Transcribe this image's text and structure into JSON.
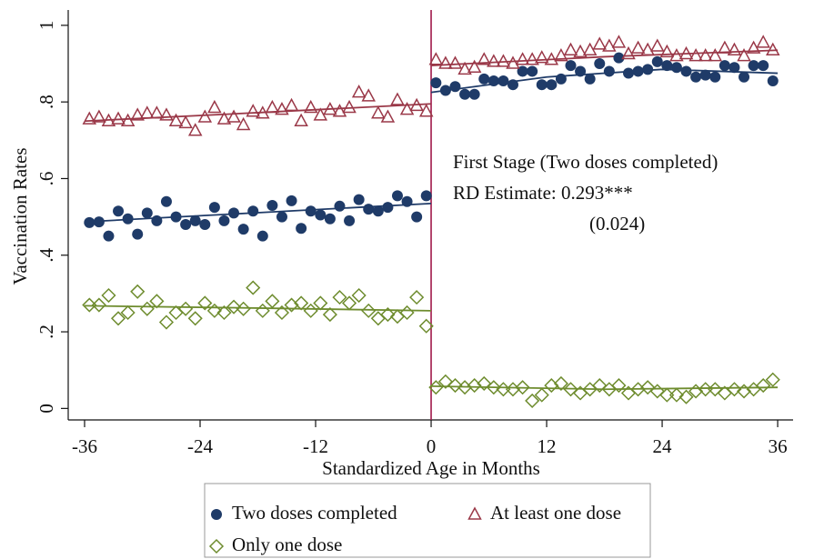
{
  "chart_data": {
    "type": "scatter",
    "xlabel": "Standardized Age in Months",
    "ylabel": "Vaccination Rates",
    "xlim": [
      -37.7,
      37.6
    ],
    "ylim": [
      -0.03,
      1.04
    ],
    "xticks": [
      -36,
      -24,
      -12,
      0,
      12,
      24,
      36
    ],
    "yticks": [
      0,
      {
        "value": 0.2,
        "label": ".2"
      },
      {
        "value": 0.4,
        "label": ".4"
      },
      {
        "value": 0.6,
        "label": ".6"
      },
      {
        "value": 0.8,
        "label": ".8"
      },
      1
    ],
    "cutoff": 0,
    "cutoff_color": "#a0194a",
    "annotations": [
      "First Stage (Two doses completed)",
      "RD Estimate: 0.293***",
      "(0.024)"
    ],
    "x": [
      -35.5,
      -34.5,
      -33.5,
      -32.5,
      -31.5,
      -30.5,
      -29.5,
      -28.5,
      -27.5,
      -26.5,
      -25.5,
      -24.5,
      -23.5,
      -22.5,
      -21.5,
      -20.5,
      -19.5,
      -18.5,
      -17.5,
      -16.5,
      -15.5,
      -14.5,
      -13.5,
      -12.5,
      -11.5,
      -10.5,
      -9.5,
      -8.5,
      -7.5,
      -6.5,
      -5.5,
      -4.5,
      -3.5,
      -2.5,
      -1.5,
      -0.5,
      0.5,
      1.5,
      2.5,
      3.5,
      4.5,
      5.5,
      6.5,
      7.5,
      8.5,
      9.5,
      10.5,
      11.5,
      12.5,
      13.5,
      14.5,
      15.5,
      16.5,
      17.5,
      18.5,
      19.5,
      20.5,
      21.5,
      22.5,
      23.5,
      24.5,
      25.5,
      26.5,
      27.5,
      28.5,
      29.5,
      30.5,
      31.5,
      32.5,
      33.5,
      34.5,
      35.5
    ],
    "series": [
      {
        "name": "Two doses completed",
        "color": "#1f3b68",
        "marker": "circle",
        "values": [
          0.485,
          0.487,
          0.45,
          0.515,
          0.495,
          0.455,
          0.51,
          0.49,
          0.54,
          0.5,
          0.48,
          0.49,
          0.48,
          0.525,
          0.49,
          0.51,
          0.468,
          0.515,
          0.45,
          0.53,
          0.5,
          0.542,
          0.47,
          0.515,
          0.505,
          0.495,
          0.528,
          0.49,
          0.545,
          0.52,
          0.515,
          0.525,
          0.555,
          0.54,
          0.5,
          0.555,
          0.85,
          0.83,
          0.84,
          0.82,
          0.82,
          0.86,
          0.855,
          0.855,
          0.845,
          0.88,
          0.88,
          0.845,
          0.845,
          0.86,
          0.895,
          0.88,
          0.86,
          0.9,
          0.88,
          0.915,
          0.875,
          0.88,
          0.885,
          0.905,
          0.895,
          0.89,
          0.88,
          0.865,
          0.87,
          0.865,
          0.895,
          0.89,
          0.865,
          0.895,
          0.895,
          0.855
        ]
      },
      {
        "name": "At least one dose",
        "color": "#9a3848",
        "marker": "triangle",
        "values": [
          0.755,
          0.76,
          0.75,
          0.755,
          0.75,
          0.765,
          0.77,
          0.77,
          0.765,
          0.75,
          0.745,
          0.725,
          0.76,
          0.785,
          0.755,
          0.76,
          0.74,
          0.775,
          0.77,
          0.785,
          0.78,
          0.79,
          0.75,
          0.785,
          0.765,
          0.78,
          0.775,
          0.785,
          0.825,
          0.815,
          0.77,
          0.76,
          0.805,
          0.78,
          0.79,
          0.775,
          0.91,
          0.9,
          0.9,
          0.885,
          0.89,
          0.91,
          0.905,
          0.905,
          0.9,
          0.91,
          0.91,
          0.915,
          0.91,
          0.92,
          0.935,
          0.93,
          0.935,
          0.95,
          0.945,
          0.955,
          0.925,
          0.94,
          0.935,
          0.945,
          0.93,
          0.92,
          0.925,
          0.92,
          0.92,
          0.92,
          0.94,
          0.935,
          0.92,
          0.94,
          0.955,
          0.935
        ]
      },
      {
        "name": "Only one dose",
        "color": "#6e8c2e",
        "marker": "diamond",
        "values": [
          0.27,
          0.27,
          0.295,
          0.235,
          0.25,
          0.305,
          0.26,
          0.28,
          0.225,
          0.25,
          0.26,
          0.235,
          0.275,
          0.255,
          0.25,
          0.265,
          0.26,
          0.315,
          0.255,
          0.28,
          0.25,
          0.27,
          0.275,
          0.255,
          0.275,
          0.245,
          0.29,
          0.275,
          0.295,
          0.255,
          0.235,
          0.245,
          0.24,
          0.25,
          0.29,
          0.215,
          0.055,
          0.07,
          0.06,
          0.055,
          0.06,
          0.065,
          0.055,
          0.05,
          0.05,
          0.055,
          0.02,
          0.035,
          0.06,
          0.065,
          0.05,
          0.04,
          0.05,
          0.06,
          0.05,
          0.06,
          0.04,
          0.05,
          0.055,
          0.045,
          0.035,
          0.035,
          0.03,
          0.045,
          0.05,
          0.05,
          0.04,
          0.05,
          0.045,
          0.05,
          0.06,
          0.075
        ]
      }
    ],
    "fits": [
      {
        "color": "#1f3b68",
        "x": [
          -36,
          -18,
          0
        ],
        "values": [
          0.487,
          0.511,
          0.535
        ]
      },
      {
        "color": "#1f3b68",
        "x": [
          0,
          12,
          24,
          36
        ],
        "values": [
          0.825,
          0.865,
          0.885,
          0.875
        ]
      },
      {
        "color": "#9a3848",
        "x": [
          -36,
          -18,
          0
        ],
        "values": [
          0.75,
          0.772,
          0.795
        ]
      },
      {
        "color": "#9a3848",
        "x": [
          0,
          18,
          36
        ],
        "values": [
          0.895,
          0.918,
          0.935
        ]
      },
      {
        "color": "#6e8c2e",
        "x": [
          -36,
          -18,
          0
        ],
        "values": [
          0.268,
          0.262,
          0.255
        ]
      },
      {
        "color": "#6e8c2e",
        "x": [
          0,
          18,
          36
        ],
        "values": [
          0.058,
          0.05,
          0.055
        ]
      }
    ]
  }
}
